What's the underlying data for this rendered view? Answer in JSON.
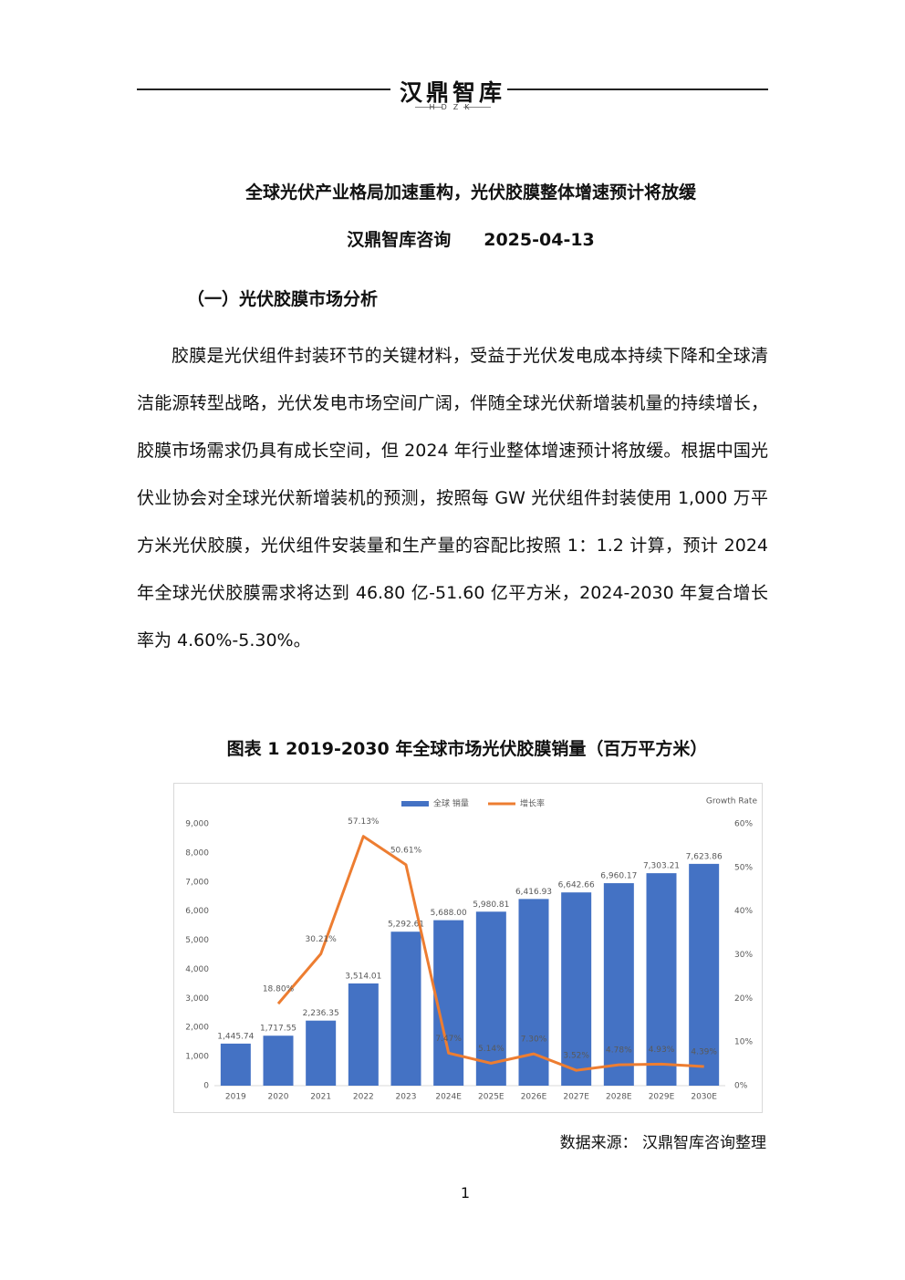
{
  "header": {
    "brand": "汉鼎智库",
    "brand_sub": "HDZK"
  },
  "title": "全球光伏产业格局加速重构，光伏胶膜整体增速预计将放缓",
  "author": "汉鼎智库咨询",
  "date": "2025-04-13",
  "section": "（一）光伏胶膜市场分析",
  "paragraph": "胶膜是光伏组件封装环节的关键材料，受益于光伏发电成本持续下降和全球清洁能源转型战略，光伏发电市场空间广阔，伴随全球光伏新增装机量的持续增长，胶膜市场需求仍具有成长空间，但 2024 年行业整体增速预计将放缓。根据中国光伏业协会对全球光伏新增装机的预测，按照每 GW 光伏组件封装使用 1,000 万平方米光伏胶膜，光伏组件安装量和生产量的容配比按照 1：1.2 计算，预计 2024 年全球光伏胶膜需求将达到 46.80 亿-51.60 亿平方米，2024-2030 年复合增长率为 4.60%-5.30%。",
  "caption": "图表 1 2019-2030 年全球市场光伏胶膜销量（百万平方米）",
  "source": "数据来源： 汉鼎智库咨询整理",
  "page_number": "1",
  "chart_data": {
    "type": "bar_line",
    "y2_title": "Growth Rate",
    "categories": [
      "2019",
      "2020",
      "2021",
      "2022",
      "2023",
      "2024E",
      "2025E",
      "2026E",
      "2027E",
      "2028E",
      "2029E",
      "2030E"
    ],
    "series": [
      {
        "name": "全球 销量",
        "type": "bar",
        "color": "#4472c4",
        "values": [
          1445.74,
          1717.55,
          2236.35,
          3514.01,
          5292.61,
          5688.0,
          5980.81,
          6416.93,
          6642.66,
          6960.17,
          7303.21,
          7623.86
        ],
        "value_labels": [
          "1,445.74",
          "1,717.55",
          "2,236.35",
          "3,514.01",
          "5,292.61",
          "5,688.00",
          "5,980.81",
          "6,416.93",
          "6,642.66",
          "6,960.17",
          "7,303.21",
          "7,623.86"
        ]
      },
      {
        "name": "增长率",
        "type": "line",
        "color": "#ed7d31",
        "axis": "y2",
        "values": [
          null,
          18.8,
          30.21,
          57.13,
          50.61,
          7.47,
          5.14,
          7.3,
          3.52,
          4.78,
          4.93,
          4.39
        ],
        "value_labels": [
          null,
          "18.80%",
          "30.21%",
          "57.13%",
          "50.61%",
          "7.47%",
          "5.14%",
          "7.30%",
          "3.52%",
          "4.78%",
          "4.93%",
          "4.39%"
        ]
      }
    ],
    "ylim": [
      0,
      9000
    ],
    "yticks": [
      0,
      {
        "value": 1000,
        "label": "1,000"
      },
      {
        "value": 2000,
        "label": "2,000"
      },
      {
        "value": 3000,
        "label": "3,000"
      },
      {
        "value": 4000,
        "label": "4,000"
      },
      {
        "value": 5000,
        "label": "5,000"
      },
      {
        "value": 6000,
        "label": "6,000"
      },
      {
        "value": 7000,
        "label": "7,000"
      },
      {
        "value": 8000,
        "label": "8,000"
      },
      {
        "value": 9000,
        "label": "9,000"
      }
    ],
    "y2lim": [
      0,
      60
    ],
    "y2ticks": [
      {
        "value": 0,
        "label": "0%"
      },
      {
        "value": 10,
        "label": "10%"
      },
      {
        "value": 20,
        "label": "20%"
      },
      {
        "value": 30,
        "label": "30%"
      },
      {
        "value": 40,
        "label": "40%"
      },
      {
        "value": 50,
        "label": "50%"
      },
      {
        "value": 60,
        "label": "60%"
      }
    ],
    "legend": "top"
  }
}
